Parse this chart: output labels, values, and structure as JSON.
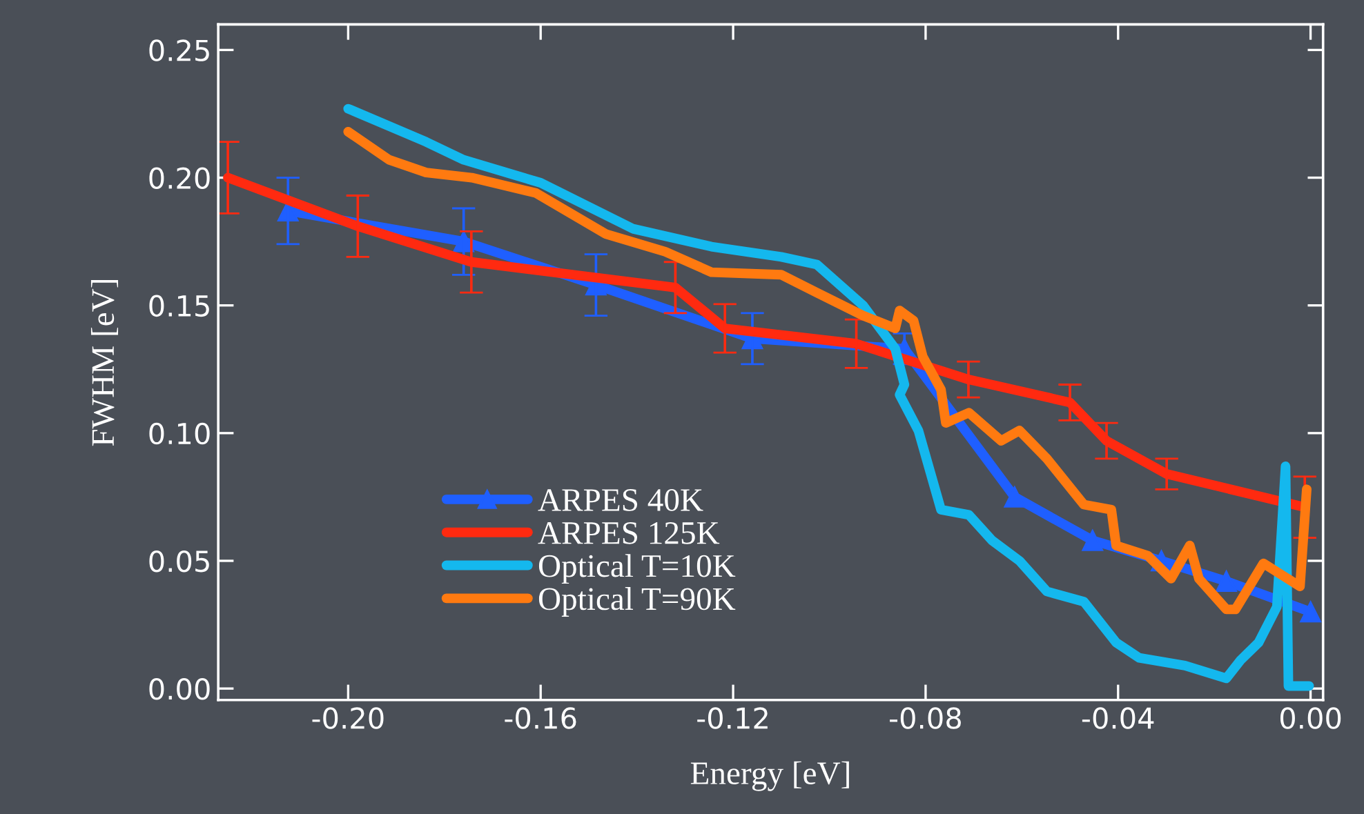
{
  "chart_data": {
    "type": "line",
    "xlabel": "Energy [eV]",
    "ylabel": "FWHM [eV]",
    "xlim": [
      -0.227,
      0.0026
    ],
    "ylim": [
      -0.0045,
      0.26
    ],
    "xticks": [
      {
        "value": -0.2,
        "label": "-0.20"
      },
      {
        "value": -0.16,
        "label": "-0.16"
      },
      {
        "value": -0.12,
        "label": "-0.12"
      },
      {
        "value": -0.08,
        "label": "-0.08"
      },
      {
        "value": -0.04,
        "label": "-0.04"
      },
      {
        "value": 0.0,
        "label": "0.00"
      }
    ],
    "yticks": [
      {
        "value": 0.0,
        "label": "0.00"
      },
      {
        "value": 0.05,
        "label": "0.05"
      },
      {
        "value": 0.1,
        "label": "0.10"
      },
      {
        "value": 0.15,
        "label": "0.15"
      },
      {
        "value": 0.2,
        "label": "0.20"
      },
      {
        "value": 0.25,
        "label": "0.25"
      }
    ],
    "grid": false,
    "legend": "lower left",
    "series": [
      {
        "name": "ARPES 40K",
        "color": "#1f5fff",
        "marker": "triangle",
        "x": [
          -0.2125,
          -0.176,
          -0.1485,
          -0.116,
          -0.0844,
          -0.0615,
          -0.0453,
          -0.031,
          -0.0175,
          0.0
        ],
        "values": [
          0.187,
          0.175,
          0.158,
          0.137,
          0.133,
          0.075,
          0.058,
          0.05,
          0.042,
          0.03
        ],
        "errors": [
          0.013,
          0.013,
          0.012,
          0.01,
          0.006,
          null,
          null,
          null,
          null,
          null
        ]
      },
      {
        "name": "ARPES 125K",
        "color": "#ff2a10",
        "marker": "none",
        "x": [
          -0.225,
          -0.198,
          -0.1744,
          -0.132,
          -0.1217,
          -0.0944,
          -0.0711,
          -0.05,
          -0.0424,
          -0.0299,
          -0.0012
        ],
        "values": [
          0.2,
          0.181,
          0.167,
          0.157,
          0.141,
          0.135,
          0.121,
          0.112,
          0.097,
          0.084,
          0.071
        ],
        "errors": [
          0.014,
          0.012,
          0.012,
          0.01,
          0.0095,
          0.0095,
          0.007,
          0.007,
          0.007,
          0.006,
          0.012
        ]
      },
      {
        "name": "Optical T=10K",
        "color": "#14b8ee",
        "marker": "none",
        "x": [
          -0.2,
          -0.1838,
          -0.176,
          -0.16,
          -0.1408,
          -0.1245,
          -0.11,
          -0.1026,
          -0.093,
          -0.0863,
          -0.0844,
          -0.0854,
          -0.0815,
          -0.0768,
          -0.071,
          -0.0662,
          -0.0605,
          -0.0548,
          -0.0471,
          -0.0404,
          -0.0356,
          -0.0261,
          -0.0175,
          -0.0146,
          -0.0108,
          -0.007,
          -0.0052,
          -0.0046,
          -0.0003
        ],
        "values": [
          0.227,
          0.214,
          0.207,
          0.198,
          0.18,
          0.173,
          0.169,
          0.166,
          0.15,
          0.133,
          0.119,
          0.115,
          0.101,
          0.07,
          0.068,
          0.058,
          0.05,
          0.038,
          0.034,
          0.018,
          0.012,
          0.009,
          0.004,
          0.011,
          0.018,
          0.032,
          0.087,
          0.001,
          0.001
        ]
      },
      {
        "name": "Optical T=90K",
        "color": "#ff7a10",
        "marker": "none",
        "x": [
          -0.2,
          -0.1915,
          -0.1838,
          -0.1743,
          -0.161,
          -0.1465,
          -0.1341,
          -0.1245,
          -0.11,
          -0.1026,
          -0.093,
          -0.0863,
          -0.0854,
          -0.0825,
          -0.0806,
          -0.0768,
          -0.0758,
          -0.071,
          -0.0643,
          -0.0605,
          -0.0548,
          -0.0471,
          -0.0414,
          -0.0404,
          -0.0338,
          -0.029,
          -0.0251,
          -0.0232,
          -0.0175,
          -0.0156,
          -0.0098,
          -0.0022,
          -0.0008
        ],
        "values": [
          0.218,
          0.207,
          0.202,
          0.2,
          0.194,
          0.178,
          0.171,
          0.163,
          0.162,
          0.155,
          0.146,
          0.141,
          0.148,
          0.144,
          0.13,
          0.117,
          0.104,
          0.108,
          0.097,
          0.101,
          0.09,
          0.072,
          0.07,
          0.056,
          0.052,
          0.043,
          0.056,
          0.043,
          0.031,
          0.031,
          0.049,
          0.04,
          0.078
        ]
      }
    ]
  }
}
